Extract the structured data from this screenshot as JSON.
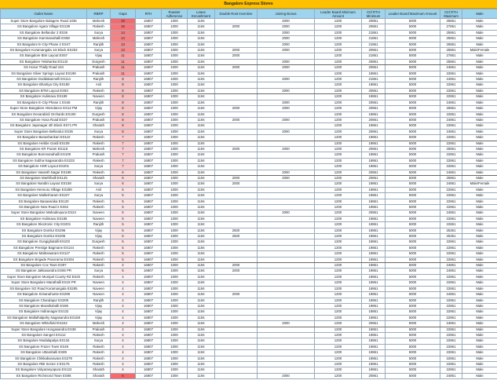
{
  "title": "Bangalore Express Stores",
  "colors": {
    "title_bg": "#FFC000",
    "header_bg": "#9ED4EE",
    "gap_high": "#F8696B",
    "gap_low": "#FDF0F0"
  },
  "columns": [
    "Outlet Name",
    "RBRP",
    "Gaps",
    "RTH",
    "Roaster Adherence",
    "Leave Encashment",
    "Double Rost Incentive",
    "Joining Bonus",
    "Leader Board Minimum Amount",
    "Ctrl RTH Minimum",
    "Leader Board Maximum Amount",
    "Ctrl RTH Maximum",
    "Male"
  ],
  "rows": [
    [
      "Super Store Bangalore Balagere Road 1036",
      "Mahesh",
      16,
      "16807",
      "1000",
      "1194",
      "",
      "2000",
      "1200",
      "20861",
      "5000",
      "25861",
      "Male"
    ],
    [
      "SS Bangalore Agara Village ES138",
      "Rakesh",
      15,
      "16807",
      "1000",
      "1194",
      "2000",
      "2000",
      "1200",
      "20861",
      "5000",
      "27861",
      "Male"
    ],
    [
      "SS Bangalore Bellandur 2 ES36",
      "Surya",
      14,
      "16807",
      "1000",
      "1194",
      "",
      "2000",
      "1200",
      "21861",
      "5000",
      "25861",
      "Male"
    ],
    [
      "SS Bangalore Kammanahalli ES58",
      "Mahesh",
      14,
      "16807",
      "1000",
      "1194",
      "",
      "2000",
      "1200",
      "21861",
      "5000",
      "25861",
      "Male"
    ],
    [
      "SS Bangalore E-City Phase 2 ES47",
      "Ranjith",
      13,
      "16807",
      "1000",
      "1194",
      "",
      "2000",
      "1200",
      "21861",
      "5000",
      "25861",
      "Male"
    ],
    [
      "SS Bangalore Koramangala 1st Block ES253",
      "Surya",
      13,
      "16807",
      "1000",
      "1194",
      "2000",
      "2000",
      "1200",
      "20861",
      "5000",
      "25861",
      "Male/Female"
    ],
    [
      "SS Bangalore Btm Layout ES57",
      "Vijay",
      11,
      "16807",
      "1000",
      "1194",
      "2000",
      "",
      "1200",
      "21861",
      "5000",
      "27861",
      "Male"
    ],
    [
      "SS Bangalore Yelahanka ES142",
      "Durgesh",
      11,
      "16807",
      "1000",
      "1194",
      "",
      "2000",
      "1200",
      "20861",
      "5000",
      "25861",
      "Male"
    ],
    [
      "SS Hosur Thally Road 104",
      "Prakash",
      11,
      "16807",
      "1000",
      "1194",
      "2000",
      "2000",
      "1200",
      "20861",
      "5000",
      "24861",
      "Male"
    ],
    [
      "SS Bangalore Silver Springs Layout ES199",
      "Prakash",
      11,
      "16807",
      "1000",
      "1194",
      "",
      "",
      "1200",
      "19861",
      "5000",
      "22861",
      "Male"
    ],
    [
      "SS Bangalore Doddakannelli ES114",
      "Ranjith",
      8,
      "16807",
      "1000",
      "1194",
      "",
      "2000",
      "1200",
      "21861",
      "5000",
      "24861",
      "Male"
    ],
    [
      "SS Bangalore Bhartiya City ES180",
      "Anil",
      8,
      "16807",
      "1000",
      "1194",
      "",
      "",
      "1200",
      "19861",
      "5000",
      "22861",
      "Male"
    ],
    [
      "SS Bangalore BTM Layout ES93",
      "Rakesh",
      8,
      "16807",
      "1000",
      "1194",
      "",
      "2000",
      "1200",
      "20861",
      "5000",
      "22861",
      "Male"
    ],
    [
      "SS Bangalore Hulimavu ES189",
      "Naveen",
      8,
      "16807",
      "1000",
      "1194",
      "",
      "",
      "1200",
      "19861",
      "5000",
      "22861",
      "Male"
    ],
    [
      "SS Bangalore E-City Phase 1 ES46",
      "Ranjith",
      8,
      "16807",
      "1000",
      "1194",
      "",
      "2000",
      "1200",
      "20861",
      "5000",
      "24861",
      "Male"
    ],
    [
      "Super Store Bangalore Attendance ES12 PM",
      "Vijay",
      8,
      "16807",
      "1000",
      "1194",
      "2000",
      "2000",
      "1200",
      "20861",
      "5000",
      "25861",
      "Male"
    ],
    [
      "SS Bangalore Devarabisli Orchards ES190",
      "Durgesh",
      8,
      "16807",
      "1000",
      "1194",
      "",
      "",
      "1200",
      "19861",
      "5000",
      "22861",
      "Male"
    ],
    [
      "SS Bangalore Hosa Road ES37",
      "Prakash",
      8,
      "16807",
      "1000",
      "1194",
      "2000",
      "2000",
      "1200",
      "20861",
      "5000",
      "24861",
      "Male"
    ],
    [
      "SS Bangalore Jayanagar 4th Block ES71 PR",
      "Sharath",
      8,
      "16807",
      "1000",
      "1194",
      "",
      "",
      "1200",
      "19861",
      "5000",
      "22861",
      "Male"
    ],
    [
      "Super Store Bangalore Bellandur ES36",
      "Surya",
      8,
      "16807",
      "1000",
      "1194",
      "",
      "2000",
      "1200",
      "20861",
      "5000",
      "24861",
      "Male"
    ],
    [
      "SS Bangalore Banashankari ES110",
      "Rakesh",
      7,
      "16807",
      "1000",
      "1194",
      "",
      "",
      "1200",
      "19861",
      "5000",
      "22861",
      "Male"
    ],
    [
      "SS Bangalore Hebbe Gardi ES109",
      "Rakesh",
      7,
      "16807",
      "1000",
      "1194",
      "",
      "",
      "1200",
      "19861",
      "5000",
      "22861",
      "Male"
    ],
    [
      "SS Bangalore KR Puram ES118",
      "Mahesh",
      7,
      "16807",
      "1000",
      "1194",
      "2000",
      "2000",
      "1200",
      "20861",
      "5000",
      "25861",
      "Male"
    ],
    [
      "SS Bangalore Bommanahalli ES109",
      "Prakash",
      7,
      "16807",
      "1000",
      "1194",
      "",
      "",
      "1200",
      "19861",
      "5000",
      "22861",
      "Male"
    ],
    [
      "SS Bangalore Subha Nagasandra ES233",
      "Rakesh",
      7,
      "16807",
      "1000",
      "1194",
      "",
      "",
      "1200",
      "19861",
      "5000",
      "22861",
      "Male"
    ],
    [
      "SS Bangalore HSR Layout ES201",
      "Surya",
      7,
      "16807",
      "1000",
      "1194",
      "",
      "",
      "1200",
      "19861",
      "5000",
      "22861",
      "Male"
    ],
    [
      "SS Bangalore Vasanth Nagar ES198",
      "Rakesh",
      6,
      "16807",
      "1000",
      "1194",
      "",
      "2000",
      "1200",
      "20861",
      "5000",
      "24861",
      "Male"
    ],
    [
      "SS Bangalore Marthhalli ES145",
      "Sharath",
      6,
      "16807",
      "1000",
      "1194",
      "2000",
      "2000",
      "1200",
      "20861",
      "5000",
      "25861",
      "Male"
    ],
    [
      "SS Bangalore Nandini Layout ES158",
      "Surya",
      6,
      "16807",
      "1000",
      "1194",
      "2000",
      "",
      "1200",
      "19861",
      "5000",
      "24861",
      "Male/Female"
    ],
    [
      "SS Bangalore Hennuru Village ES289",
      "Anil",
      5,
      "16807",
      "1000",
      "1194",
      "",
      "",
      "1200",
      "19861",
      "5000",
      "22861",
      "Male"
    ],
    [
      "SS Bangalore Mallesharam ES227",
      "Surya",
      5,
      "16807",
      "1000",
      "1194",
      "",
      "",
      "1200",
      "19861",
      "5000",
      "22861",
      "Male"
    ],
    [
      "SS Bangalore Basavanika ES120",
      "Rakesh",
      5,
      "16807",
      "1000",
      "1194",
      "",
      "",
      "1200",
      "19861",
      "5000",
      "22861",
      "Male"
    ],
    [
      "SS Bangalore New Road 2 ES52",
      "Rakesh",
      5,
      "16807",
      "1000",
      "1194",
      "",
      "",
      "1200",
      "19861",
      "5000",
      "22861",
      "Male"
    ],
    [
      "Super Store Bangalore Mahadevpura ES24",
      "Naveen",
      5,
      "16807",
      "1000",
      "1194",
      "",
      "2000",
      "1200",
      "20861",
      "5000",
      "24861",
      "Male"
    ],
    [
      "SS Bangalore Hulimavu ES186",
      "Naveen",
      5,
      "16807",
      "1000",
      "1194",
      "",
      "",
      "1200",
      "19861",
      "5000",
      "22861",
      "Male"
    ],
    [
      "SS Bangalore Electronic City ES201",
      "Ranjith",
      5,
      "16807",
      "1000",
      "1194",
      "",
      "",
      "1200",
      "19861",
      "5000",
      "22861",
      "Male"
    ],
    [
      "SS Bangalore Domlur ES296",
      "Vijay",
      5,
      "16807",
      "1000",
      "1194",
      "2500",
      "",
      "1200",
      "19861",
      "5000",
      "25361",
      "Male"
    ],
    [
      "SS Bangalore Domlur ES205",
      "Vijay",
      5,
      "16807",
      "1000",
      "1194",
      "2500",
      "",
      "1200",
      "19861",
      "5000",
      "25361",
      "Male"
    ],
    [
      "SS Bangalore Gungighatalli ES103",
      "Durgesh",
      5,
      "16807",
      "1000",
      "1194",
      "",
      "",
      "1200",
      "19861",
      "5000",
      "22861",
      "Male"
    ],
    [
      "SS Bangalore Prestige Bagmane ES144",
      "Rakesh",
      5,
      "16807",
      "1000",
      "1194",
      "",
      "",
      "1200",
      "19861",
      "5000",
      "22861",
      "Male"
    ],
    [
      "SS Bangalore Malleswaram ES127",
      "Rakesh",
      5,
      "16807",
      "1000",
      "1194",
      "",
      "",
      "1200",
      "19861",
      "5000",
      "22861",
      "Male"
    ],
    [
      "SS Bangalore Brigade Panorama ES304",
      "Rakesh",
      5,
      "16807",
      "1000",
      "1194",
      "",
      "",
      "1200",
      "19861",
      "5000",
      "22861",
      "Male"
    ],
    [
      "SS Bangalore Cox Town ES97",
      "Rakesh",
      4,
      "16807",
      "1000",
      "1194",
      "2000",
      "",
      "1200",
      "19861",
      "5000",
      "24861",
      "Male"
    ],
    [
      "SS Bangalore Jakkasandra ES65 PR",
      "Surya",
      5,
      "16807",
      "1000",
      "1194",
      "2000",
      "",
      "1200",
      "19861",
      "5000",
      "24861",
      "Male"
    ],
    [
      "Super Store Bangalore Munipal County Rd ES20",
      "Rakesh",
      4,
      "16807",
      "1000",
      "1194",
      "",
      "",
      "1200",
      "19861",
      "5000",
      "22861",
      "Male"
    ],
    [
      "Super Store Bangalore Marathalli ES19 PR",
      "Naveen",
      4,
      "16807",
      "1000",
      "1194",
      "",
      "",
      "1200",
      "19861",
      "5000",
      "22861",
      "Male"
    ],
    [
      "SS Bangalore SG Road Koramangala ES285",
      "Naveen",
      4,
      "16807",
      "1000",
      "1194",
      "",
      "",
      "1200",
      "19861",
      "5000",
      "22861",
      "Male"
    ],
    [
      "SS Bangalore Kimanahunte ES299",
      "Naveen",
      4,
      "16807",
      "1000",
      "1194",
      "2000",
      "",
      "1200",
      "19861",
      "5000",
      "24861",
      "Male"
    ],
    [
      "SS Bangalore Chandapur ES208",
      "Ranjith",
      4,
      "16807",
      "1000",
      "1194",
      "",
      "",
      "1200",
      "19861",
      "5000",
      "22861",
      "Male"
    ],
    [
      "SS Bangalore Marathahalli ES98",
      "Vijay",
      4,
      "16807",
      "1000",
      "1194",
      "",
      "",
      "1200",
      "19861",
      "5000",
      "22861",
      "Male"
    ],
    [
      "SS Bangalore Indiranagar ES132",
      "Vijay",
      4,
      "16807",
      "1000",
      "1194",
      "",
      "",
      "1200",
      "19861",
      "5000",
      "22861",
      "Male"
    ],
    [
      "SS Bangalore Mallathalpahy Nagasandra ES158",
      "Vijay",
      4,
      "16807",
      "1000",
      "1194",
      "",
      "",
      "1200",
      "19861",
      "5000",
      "22861",
      "Male"
    ],
    [
      "SS Bangalore Whitefield ES242",
      "Mahesh",
      4,
      "16807",
      "1000",
      "1194",
      "",
      "2000",
      "1200",
      "20861",
      "5000",
      "24861",
      "Male"
    ],
    [
      "Super Store Bangalore Hongasandra ES38",
      "Prakash",
      4,
      "16807",
      "1000",
      "1194",
      "",
      "",
      "1200",
      "19861",
      "5000",
      "22861",
      "Male"
    ],
    [
      "SS Bangalore Sangeri ES112",
      "Rakesh",
      4,
      "16807",
      "1000",
      "1194",
      "",
      "",
      "1200",
      "19861",
      "5000",
      "22861",
      "Male"
    ],
    [
      "SS Bangalore Mudalapalya ES134",
      "Surya",
      4,
      "16807",
      "1000",
      "1194",
      "",
      "",
      "1200",
      "19861",
      "5000",
      "22861",
      "Male"
    ],
    [
      "SS Bangalore Frazer Town ES49",
      "Rakesh",
      4,
      "16807",
      "1000",
      "1194",
      "",
      "",
      "1200",
      "19861",
      "5000",
      "22861",
      "Male"
    ],
    [
      "SS Bangalore Uttarahalli ES89",
      "Rakesh",
      4,
      "16807",
      "1000",
      "1194",
      "",
      "",
      "1200",
      "19861",
      "5000",
      "22861",
      "Male"
    ],
    [
      "SS Bangalore Chikkabanavara ES279",
      "Rakesh",
      4,
      "16807",
      "1000",
      "1194",
      "",
      "",
      "1200",
      "19861",
      "5000",
      "22861",
      "Male"
    ],
    [
      "SS Bangalore RBI Sector 3 ES176",
      "Rakesh",
      4,
      "16807",
      "1000",
      "1194",
      "",
      "",
      "1200",
      "19861",
      "5000",
      "22861",
      "Male"
    ],
    [
      "SS Bangalore Vidyaranyapura ES122",
      "Sharath",
      4,
      "16807",
      "1000",
      "1194",
      "",
      "",
      "1200",
      "19861",
      "5000",
      "22861",
      "Male"
    ],
    [
      "SS Bangalore Richmond Town ES86",
      "Sharath",
      6,
      "16807",
      "1000",
      "1194",
      "",
      "2000",
      "1200",
      "20861",
      "5000",
      "24861",
      "Male"
    ]
  ]
}
